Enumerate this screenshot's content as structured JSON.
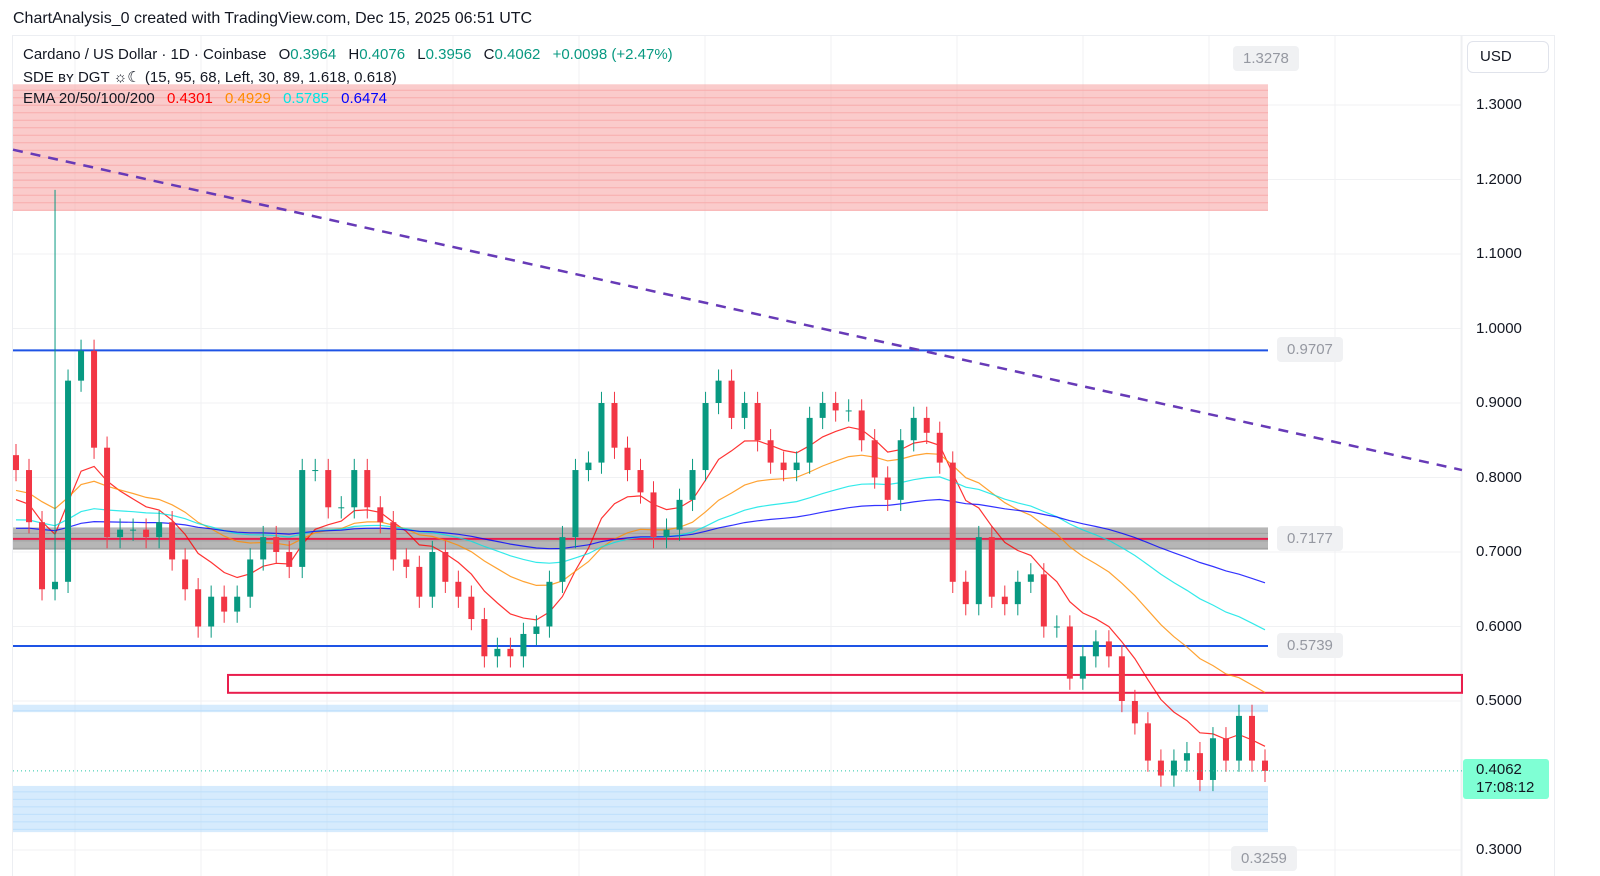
{
  "caption": "ChartAnalysis_0 created with TradingView.com, Dec 15, 2025 06:51 UTC",
  "legend": {
    "symbol": "Cardano / US Dollar · 1D · Coinbase",
    "open_label": "O",
    "open": "0.3964",
    "high_label": "H",
    "high": "0.4076",
    "low_label": "L",
    "low": "0.3956",
    "close_label": "C",
    "close": "0.4062",
    "change": "+0.0098 (+2.47%)",
    "sde": "SDE ʙʏ DGT ☼☾ (15, 95, 68, Left, 30, 89, 1.618, 0.618)",
    "ema_label": "EMA 20/50/100/200",
    "ema20": "0.4301",
    "ema50": "0.4929",
    "ema100": "0.5785",
    "ema200": "0.6474"
  },
  "currency": "USD",
  "last_price": {
    "value": "0.4062",
    "countdown": "17:08:12"
  },
  "colors": {
    "up": "#089981",
    "down": "#f23645",
    "ema20": "#ff0000",
    "ema50": "#ff8c00",
    "ema100": "#00e5e5",
    "ema200": "#0000ff",
    "level": "#1e53e5",
    "trendline": "#673ab7"
  },
  "chart_data": {
    "type": "candlestick",
    "title": "Cardano / US Dollar · 1D · Coinbase",
    "ylim": [
      0.29,
      1.37
    ],
    "y_ticks": [
      "1.3000",
      "1.2000",
      "1.1000",
      "1.0000",
      "0.9000",
      "0.8000",
      "0.7000",
      "0.6000",
      "0.5000",
      "0.3000"
    ],
    "grid": true,
    "closes": [
      0.81,
      0.74,
      0.65,
      0.66,
      0.93,
      0.97,
      0.84,
      0.72,
      0.73,
      0.73,
      0.72,
      0.74,
      0.69,
      0.65,
      0.6,
      0.64,
      0.62,
      0.64,
      0.69,
      0.72,
      0.7,
      0.68,
      0.81,
      0.81,
      0.76,
      0.76,
      0.81,
      0.76,
      0.74,
      0.69,
      0.68,
      0.64,
      0.7,
      0.66,
      0.64,
      0.61,
      0.56,
      0.57,
      0.56,
      0.59,
      0.6,
      0.66,
      0.72,
      0.81,
      0.82,
      0.9,
      0.84,
      0.81,
      0.78,
      0.72,
      0.73,
      0.77,
      0.81,
      0.9,
      0.93,
      0.88,
      0.9,
      0.85,
      0.82,
      0.81,
      0.82,
      0.88,
      0.9,
      0.89,
      0.89,
      0.85,
      0.8,
      0.77,
      0.85,
      0.88,
      0.86,
      0.82,
      0.66,
      0.63,
      0.72,
      0.64,
      0.63,
      0.66,
      0.67,
      0.6,
      0.6,
      0.53,
      0.56,
      0.58,
      0.56,
      0.5,
      0.47,
      0.42,
      0.4,
      0.42,
      0.43,
      0.394,
      0.45,
      0.42,
      0.48,
      0.42,
      0.4062
    ],
    "spike_high": 1.186,
    "levels": [
      {
        "price": 0.9707,
        "label": "0.9707",
        "kind": "support-resistance"
      },
      {
        "price": 0.7177,
        "label": "0.7177",
        "kind": "zone"
      },
      {
        "price": 0.5739,
        "label": "0.5739",
        "kind": "support-resistance"
      }
    ],
    "zones": [
      {
        "from": 1.158,
        "to": 1.3278,
        "label": "1.3278",
        "color": "#f7a9a8"
      },
      {
        "from": 0.324,
        "to": 0.386,
        "label": "0.3259",
        "color": "#bbdefb"
      },
      {
        "from": 0.485,
        "to": 0.495,
        "color": "#bbdefb"
      },
      {
        "from": 0.703,
        "to": 0.733,
        "color": "#9e9e9e"
      }
    ],
    "rect_lines": [
      0.535,
      0.511
    ],
    "trendline": [
      1.24,
      0.81
    ],
    "ema_periods": [
      20,
      50,
      100,
      200
    ]
  }
}
